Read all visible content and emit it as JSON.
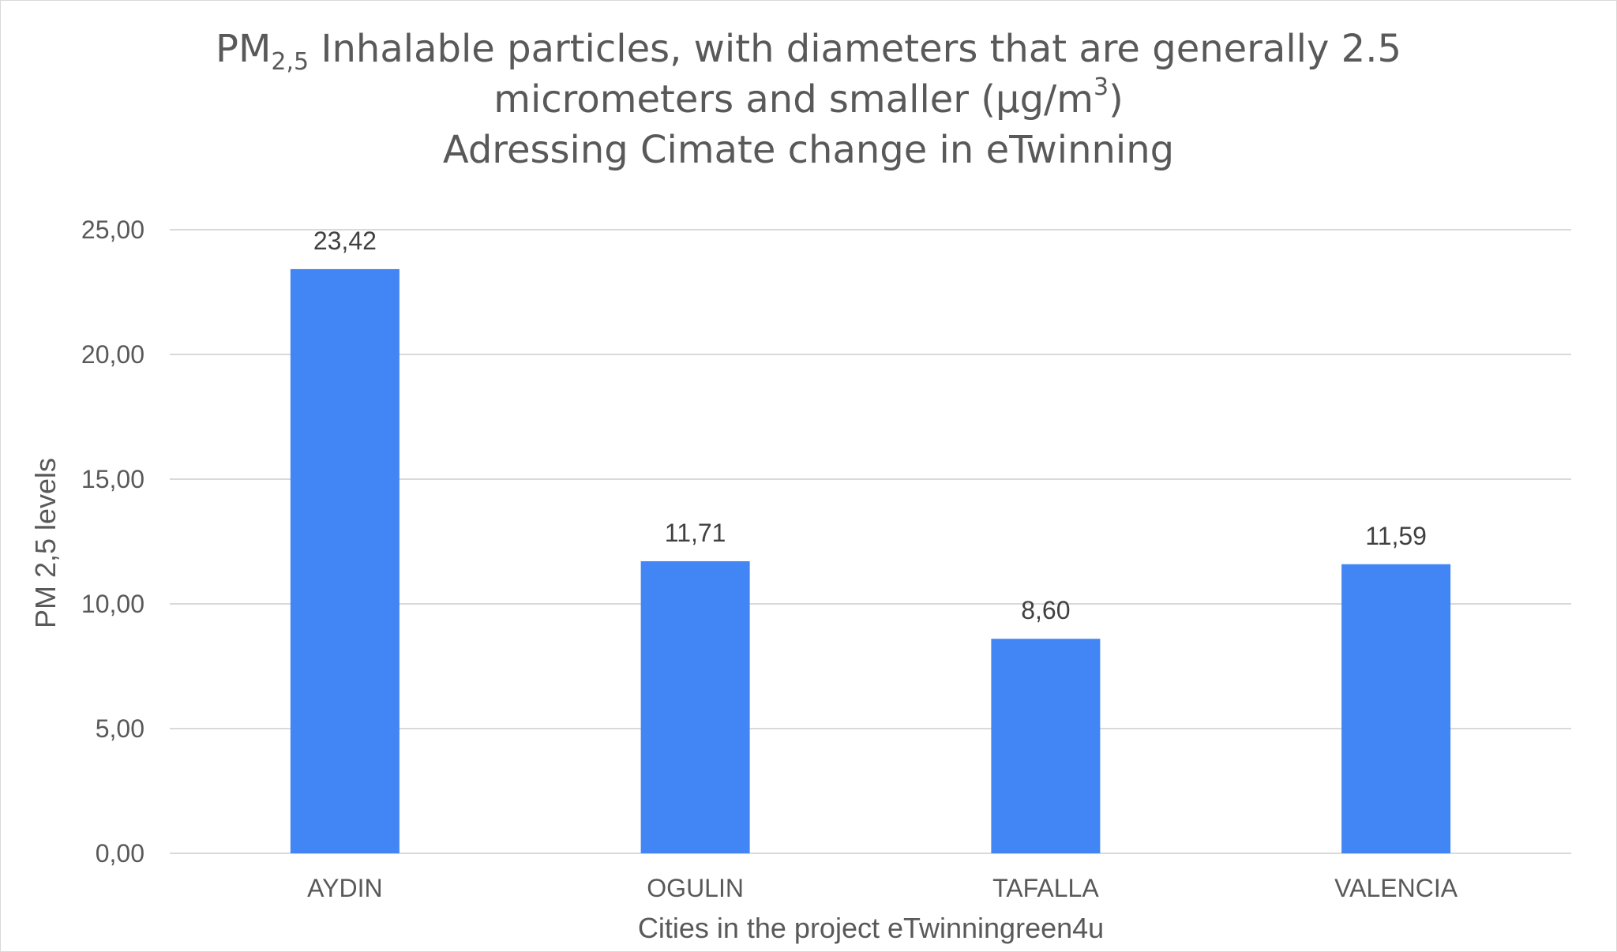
{
  "chart_data": {
    "type": "bar",
    "title": {
      "line1_prefix": "PM",
      "line1_subscript": "2,5",
      "line1_text": " Inhalable particles, with diameters that are generally 2.5",
      "line2_text": "micrometers and smaller (µg/m",
      "line2_superscript": "3",
      "line2_suffix": ")",
      "line3_text": "Adressing Cimate change in eTwinning"
    },
    "xlabel": "Cities in the project eTwinningreen4u",
    "ylabel": "PM 2,5 levels",
    "categories": [
      "AYDIN",
      "OGULIN",
      "TAFALLA",
      "VALENCIA"
    ],
    "values": [
      23.42,
      11.71,
      8.6,
      11.59
    ],
    "data_labels": [
      "23,42",
      "11,71",
      "8,60",
      "11,59"
    ],
    "ylim": [
      0,
      25
    ],
    "yticks": [
      0,
      5,
      10,
      15,
      20,
      25
    ],
    "ytick_labels": [
      "0,00",
      "5,00",
      "10,00",
      "15,00",
      "20,00",
      "25,00"
    ],
    "grid": true,
    "bar_color": "#4285F4",
    "grid_color": "#D9D9D9"
  }
}
